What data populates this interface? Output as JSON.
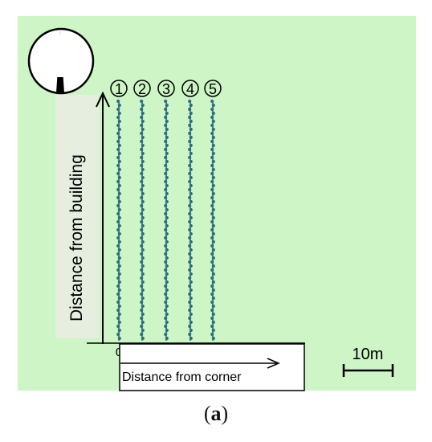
{
  "compass": {
    "icon": "north-arrow-icon"
  },
  "lines": [
    {
      "number": "1",
      "offset": "0"
    },
    {
      "number": "2",
      "offset": "5"
    },
    {
      "number": "3",
      "offset": "10"
    },
    {
      "number": "4",
      "offset": "15"
    },
    {
      "number": "5",
      "offset": "20"
    }
  ],
  "labels": {
    "y_axis": "Distance from building",
    "x_axis": "Distance from corner"
  },
  "scale_bar": {
    "label": "10m"
  },
  "caption": {
    "open": "(",
    "letter": "a",
    "close": ")"
  },
  "colors": {
    "background": "#cdf5c5",
    "building_band": "#e6eee0",
    "line_dot": "#2f6f87",
    "line_dot_alt": "#4d8f6a"
  }
}
